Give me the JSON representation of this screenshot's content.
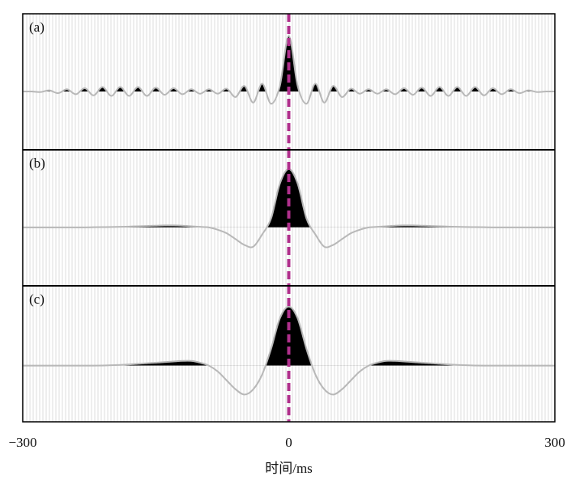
{
  "chart_data": [
    {
      "type": "line",
      "label": "(a)",
      "color": "#b8b8b8",
      "fill": "#000000",
      "x": [
        -300,
        -290,
        -280,
        -270,
        -260,
        -250,
        -240,
        -230,
        -220,
        -210,
        -200,
        -190,
        -180,
        -170,
        -160,
        -150,
        -140,
        -130,
        -120,
        -110,
        -100,
        -90,
        -80,
        -70,
        -60,
        -50,
        -40,
        -30,
        -20,
        -10,
        0,
        10,
        20,
        30,
        40,
        50,
        60,
        70,
        80,
        90,
        100,
        110,
        120,
        130,
        140,
        150,
        160,
        170,
        180,
        190,
        200,
        210,
        220,
        230,
        240,
        250,
        260,
        270,
        280,
        290,
        300
      ],
      "values": [
        0,
        0,
        -0.01,
        0.02,
        -0.03,
        0.04,
        -0.05,
        0.06,
        -0.07,
        0.08,
        -0.08,
        0.08,
        -0.08,
        0.08,
        -0.08,
        0.07,
        -0.06,
        0.06,
        -0.05,
        0.04,
        -0.04,
        0.04,
        -0.04,
        0.05,
        -0.1,
        0.1,
        -0.2,
        0.14,
        -0.22,
        0.1,
        1,
        0.1,
        -0.22,
        0.14,
        -0.2,
        0.1,
        -0.1,
        0.05,
        -0.04,
        0.04,
        -0.04,
        0.04,
        -0.05,
        0.06,
        -0.06,
        0.07,
        -0.08,
        0.08,
        -0.08,
        0.08,
        -0.08,
        0.08,
        -0.07,
        0.06,
        -0.05,
        0.04,
        -0.03,
        0.02,
        -0.01,
        0,
        0
      ],
      "xlim": [
        -300,
        300
      ],
      "ylim": [
        -1.05,
        1.4
      ],
      "vline": {
        "x": 0,
        "color": "#b0308c"
      }
    },
    {
      "type": "line",
      "label": "(b)",
      "color": "#b8b8b8",
      "fill": "#000000",
      "x": [
        -300,
        -290,
        -280,
        -270,
        -260,
        -250,
        -240,
        -230,
        -220,
        -210,
        -200,
        -190,
        -180,
        -170,
        -160,
        -150,
        -140,
        -130,
        -120,
        -110,
        -100,
        -90,
        -80,
        -70,
        -60,
        -50,
        -40,
        -30,
        -20,
        -10,
        0,
        10,
        20,
        30,
        40,
        50,
        60,
        70,
        80,
        90,
        100,
        110,
        120,
        130,
        140,
        150,
        160,
        170,
        180,
        190,
        200,
        210,
        220,
        230,
        240,
        250,
        260,
        270,
        280,
        290,
        300
      ],
      "values": [
        0,
        0,
        0,
        0,
        0,
        0,
        0,
        0.001,
        0.003,
        0.005,
        0.007,
        0.01,
        0.015,
        0.02,
        0.025,
        0.03,
        0.035,
        0.035,
        0.03,
        0.02,
        0.01,
        0,
        -0.04,
        -0.1,
        -0.2,
        -0.3,
        -0.33,
        -0.12,
        0.15,
        0.75,
        1,
        0.75,
        0.15,
        -0.12,
        -0.33,
        -0.3,
        -0.2,
        -0.1,
        -0.04,
        0,
        0.01,
        0.02,
        0.03,
        0.035,
        0.035,
        0.03,
        0.025,
        0.02,
        0.015,
        0.01,
        0.007,
        0.005,
        0.003,
        0.001,
        0,
        0,
        0,
        0,
        0,
        0,
        0
      ],
      "xlim": [
        -300,
        300
      ],
      "ylim": [
        -1.0,
        1.33
      ],
      "vline": {
        "x": 0,
        "color": "#b0308c"
      }
    },
    {
      "type": "line",
      "label": "(c)",
      "color": "#b8b8b8",
      "fill": "#000000",
      "x": [
        -300,
        -290,
        -280,
        -270,
        -260,
        -250,
        -240,
        -230,
        -220,
        -210,
        -200,
        -190,
        -180,
        -170,
        -160,
        -150,
        -140,
        -130,
        -120,
        -110,
        -100,
        -90,
        -80,
        -70,
        -60,
        -50,
        -40,
        -30,
        -20,
        -10,
        0,
        10,
        20,
        30,
        40,
        50,
        60,
        70,
        80,
        90,
        100,
        110,
        120,
        130,
        140,
        150,
        160,
        170,
        180,
        190,
        200,
        210,
        220,
        230,
        240,
        250,
        260,
        270,
        280,
        290,
        300
      ],
      "values": [
        0,
        0,
        0,
        0,
        0,
        0,
        0,
        0,
        0,
        0.002,
        0.006,
        0.012,
        0.02,
        0.03,
        0.04,
        0.05,
        0.06,
        0.07,
        0.08,
        0.08,
        0.05,
        0,
        -0.1,
        -0.25,
        -0.4,
        -0.49,
        -0.4,
        -0.15,
        0.28,
        0.8,
        1,
        0.8,
        0.28,
        -0.15,
        -0.4,
        -0.49,
        -0.4,
        -0.25,
        -0.1,
        0,
        0.05,
        0.08,
        0.08,
        0.07,
        0.06,
        0.05,
        0.04,
        0.03,
        0.02,
        0.012,
        0.006,
        0.002,
        0,
        0,
        0,
        0,
        0,
        0,
        0,
        0,
        0
      ],
      "xlim": [
        -300,
        300
      ],
      "ylim": [
        -0.95,
        1.35
      ],
      "vline": {
        "x": 0,
        "color": "#b0308c"
      },
      "xticks": [
        {
          "value": -300,
          "label": "−300"
        },
        0,
        300
      ],
      "xlabel": "时间/ms"
    }
  ]
}
